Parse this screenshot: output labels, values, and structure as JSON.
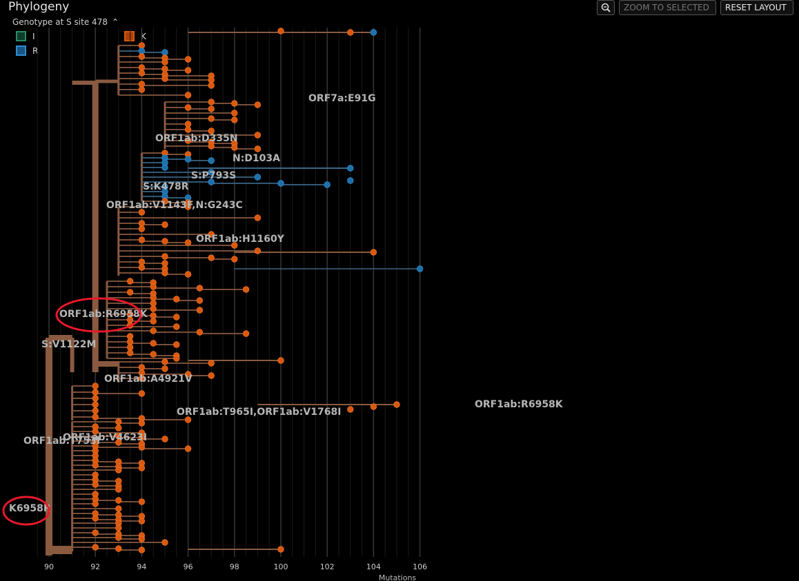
{
  "header": {
    "title": "Phylogeny",
    "color_by_label": "Genotype at S site 478",
    "zoom_selected_label": "ZOOM TO SELECTED",
    "reset_label": "RESET LAYOUT"
  },
  "legend": [
    {
      "label": "I",
      "color": "#1e6a4e"
    },
    {
      "label": "K",
      "color": "#d9580e"
    },
    {
      "label": "R",
      "color": "#1f6fa8"
    }
  ],
  "colors": {
    "K": "#d9580e",
    "R": "#1f6fa8",
    "branch": "#8a5a40",
    "branchR": "#3a6585"
  },
  "chart_data": {
    "type": "tree",
    "xlabel": "Mutations",
    "xlim": [
      89.5,
      106
    ],
    "ticks": [
      90,
      92,
      94,
      96,
      98,
      100,
      102,
      104,
      106
    ],
    "tick_labels": [
      "90",
      "92",
      "94",
      "96",
      "98",
      "100",
      "102",
      "104",
      "106"
    ],
    "branch_labels": [
      {
        "text": "ORF7a:E91G",
        "x": 96.9
      },
      {
        "text": "ORF1ab:D335N",
        "x": 93.9
      },
      {
        "text": "N:D103A",
        "x": 94.9
      },
      {
        "text": "S:P793S",
        "x": 93.9
      },
      {
        "text": "S:K478R",
        "x": 92.9
      },
      {
        "text": "ORF1ab:V1143F,N:G243C",
        "x": 93.9
      },
      {
        "text": "ORF1ab:H1160Y",
        "x": 94.9
      },
      {
        "text": "ORF1ab:R6958K",
        "x": 91.9
      },
      {
        "text": "S:V1122M",
        "x": 90.9
      },
      {
        "text": "ORF1ab:A4921V",
        "x": 91.9
      },
      {
        "text": "ORF1ab:R6958K",
        "x": 98.9
      },
      {
        "text": "ORF1ab:T965I,ORF1ab:V1768I",
        "x": 95.9
      },
      {
        "text": "ORF1ab:V4623I",
        "x": 91.1
      },
      {
        "text": "ORF1ab:T753I",
        "x": 90.9
      },
      {
        "text": "K6958R",
        "x": 89.9
      }
    ],
    "annotations": [
      "ORF1ab:R6958K",
      "K6958R"
    ]
  }
}
